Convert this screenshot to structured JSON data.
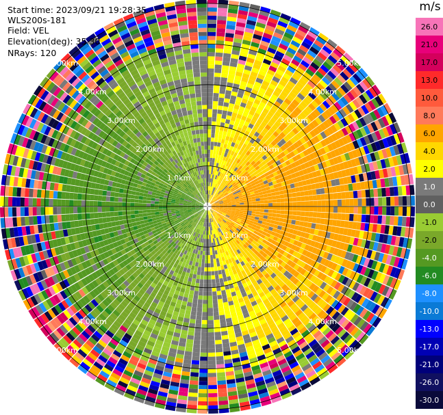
{
  "header": {
    "start_time": "Start time: 2023/09/21 19:28:35",
    "instrument": "WLS200s-181",
    "field": "Field: VEL",
    "elevation": "Elevation(deg): 35.30",
    "nrays": "NRays: 120"
  },
  "chart_data": {
    "type": "ppi",
    "field": "VEL",
    "units": "m/s",
    "n_rays": 120,
    "range_rings_km": [
      1.0,
      2.0,
      3.0,
      4.0,
      5.0
    ],
    "range_ring_labels": [
      "1.0km",
      "2.00km",
      "3.00km",
      "4.00km",
      "5.00km"
    ],
    "spokes_deg": [
      0,
      30,
      60,
      90,
      120,
      150,
      180,
      210,
      240,
      270,
      300,
      330
    ],
    "max_range_km": 5.05,
    "colorbar": {
      "unit": "m/s",
      "ticks": [
        "26.0",
        "21.0",
        "17.0",
        "13.0",
        "10.0",
        "8.0",
        "6.0",
        "4.0",
        "2.0",
        "1.0",
        "0.0",
        "-1.0",
        "-2.0",
        "-4.0",
        "-6.0",
        "-8.0",
        "-10.0",
        "-13.0",
        "-17.0",
        "-21.0",
        "-26.0",
        "-30.0"
      ],
      "colors": [
        "#f774b8",
        "#e8007a",
        "#d4005c",
        "#ff2a2a",
        "#ff5a3c",
        "#ff7a5a",
        "#ff9a6a",
        "#ffa500",
        "#ffd700",
        "#ffff00",
        "#7a7a7a",
        "#606060",
        "#99cc33",
        "#7aa82a",
        "#559922",
        "#228b22",
        "#1e90ff",
        "#0a7ad6",
        "#0000ff",
        "#0000b4",
        "#00007a",
        "#101060",
        "#0a0a3a"
      ]
    }
  }
}
